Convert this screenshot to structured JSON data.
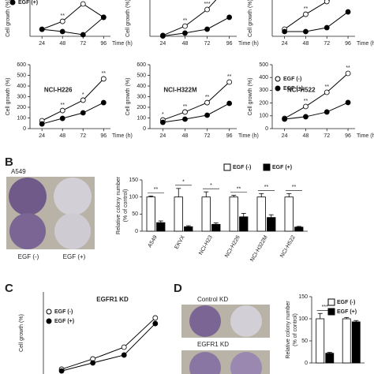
{
  "panels": [
    "B",
    "C",
    "D"
  ],
  "photos": [
    {
      "title": "A549",
      "labels": [
        "EGF (-)",
        "EGF (+)"
      ]
    },
    {
      "labels": [
        "Control KD",
        "EGFR1 KD"
      ]
    }
  ],
  "chart_data": [
    {
      "type": "line",
      "x_label": "Time (h)",
      "y_label": "Cell growth (%)",
      "x": [
        24,
        48,
        72,
        96
      ],
      "xlim": [
        10,
        104
      ],
      "xticks": [
        24,
        48,
        72,
        96
      ],
      "ylim": [
        0,
        300
      ],
      "series": [
        {
          "name": "EGF (-)",
          "color": "#ffffff",
          "values": [
            31,
            66,
            143,
            84
          ]
        },
        {
          "name": "EGF (+)",
          "color": "#000000",
          "values": [
            31,
            21,
            7,
            84
          ]
        }
      ],
      "significance": [
        null,
        "**",
        "***",
        null
      ]
    },
    {
      "type": "line",
      "x_label": "Time (h)",
      "y_label": "Cell growth (%)",
      "x": [
        24,
        48,
        72,
        96
      ],
      "xlim": [
        10,
        104
      ],
      "xticks": [
        24,
        48,
        72,
        96
      ],
      "ylim": [
        0,
        400
      ],
      "series": [
        {
          "name": "EGF (-)",
          "color": "#ffffff",
          "values": [
            5,
            60,
            158,
            300
          ]
        },
        {
          "name": "EGF (+)",
          "color": "#000000",
          "values": [
            2,
            19,
            42,
            112
          ]
        }
      ],
      "significance": [
        null,
        "**",
        "***",
        null
      ]
    },
    {
      "type": "line",
      "x_label": "Time (h)",
      "y_label": "Cell growth (%)",
      "x": [
        24,
        48,
        72,
        96
      ],
      "xlim": [
        10,
        104
      ],
      "xticks": [
        24,
        48,
        72,
        96
      ],
      "ylim": [
        0,
        400
      ],
      "series": [
        {
          "name": "EGF (-)",
          "color": "#ffffff",
          "values": [
            42,
            130,
            205,
            280
          ]
        },
        {
          "name": "EGF (+)",
          "color": "#000000",
          "values": [
            28,
            28,
            51,
            144
          ]
        }
      ],
      "significance": [
        null,
        "**",
        "***",
        "*"
      ]
    },
    {
      "type": "line",
      "title": "NCI-H226",
      "x_label": "Time (h)",
      "y_label": "Cell growth (%)",
      "x": [
        24,
        48,
        72,
        96
      ],
      "xlim": [
        10,
        104
      ],
      "xticks": [
        24,
        48,
        72,
        96
      ],
      "ylim": [
        0,
        600
      ],
      "yticks": [
        0,
        100,
        200,
        300,
        400,
        500,
        600
      ],
      "series": [
        {
          "name": "EGF (-)",
          "color": "#ffffff",
          "values": [
            74,
            170,
            267,
            467
          ]
        },
        {
          "name": "EGF (+)",
          "color": "#000000",
          "values": [
            44,
            96,
            148,
            244
          ]
        }
      ],
      "significance": [
        null,
        "**",
        "*",
        "**"
      ]
    },
    {
      "type": "line",
      "title": "NCI-H322M",
      "x_label": "Time (h)",
      "y_label": "Cell growth (%)",
      "x": [
        24,
        48,
        72,
        96
      ],
      "xlim": [
        10,
        104
      ],
      "xticks": [
        24,
        48,
        72,
        96
      ],
      "ylim": [
        0,
        600
      ],
      "yticks": [
        0,
        100,
        200,
        300,
        400,
        500,
        600
      ],
      "series": [
        {
          "name": "EGF (-)",
          "color": "#ffffff",
          "values": [
            81,
            156,
            244,
            437
          ]
        },
        {
          "name": "EGF (+)",
          "color": "#000000",
          "values": [
            59,
            89,
            126,
            237
          ]
        }
      ],
      "significance": [
        "*",
        "**",
        "**",
        "**"
      ]
    },
    {
      "type": "line",
      "title": "NCI-H522",
      "x_label": "Time (h)",
      "y_label": "Cell growth (%)",
      "x": [
        24,
        48,
        72,
        96
      ],
      "xlim": [
        10,
        104
      ],
      "xticks": [
        24,
        48,
        72,
        96
      ],
      "ylim": [
        0,
        500
      ],
      "yticks": [
        0,
        100,
        200,
        300,
        400,
        500
      ],
      "series": [
        {
          "name": "EGF (-)",
          "color": "#ffffff",
          "values": [
            80,
            173,
            284,
            432
          ]
        },
        {
          "name": "EGF (+)",
          "color": "#000000",
          "values": [
            74,
            93,
            130,
            204
          ]
        }
      ],
      "significance": [
        null,
        "**",
        "**",
        "**"
      ],
      "legend": "upper left"
    },
    {
      "type": "bar",
      "y_label": [
        "Relative colony number",
        "(% of control)"
      ],
      "categories": [
        "A549",
        "EKVX",
        "NCI-H23",
        "NCI-H226",
        "NCI-H322M",
        "NCI-H522"
      ],
      "ylim": [
        0,
        150
      ],
      "yticks": [
        0,
        50,
        100,
        150
      ],
      "series": [
        {
          "name": "EGF (-)",
          "color": "#ffffff",
          "values": [
            100,
            100,
            100,
            100,
            100,
            100
          ],
          "errors": [
            3,
            25,
            15,
            5,
            10,
            10
          ]
        },
        {
          "name": "EGF (+)",
          "color": "#000000",
          "values": [
            25,
            13,
            20,
            42,
            40,
            12
          ],
          "errors": [
            5,
            3,
            4,
            10,
            8,
            2
          ]
        }
      ],
      "significance": [
        "**",
        "*",
        "*",
        "**",
        "**",
        "**"
      ],
      "legend": "top"
    },
    {
      "type": "line",
      "title": "EGFR1 KD",
      "y_label": "Cell growth (%)",
      "x": [
        24,
        48,
        72,
        96
      ],
      "xlim": [
        10,
        104
      ],
      "ylim": [
        0,
        600
      ],
      "series": [
        {
          "name": "EGF (-)",
          "color": "#ffffff",
          "values": [
            148,
            208,
            277,
            448
          ]
        },
        {
          "name": "EGF (+)",
          "color": "#000000",
          "values": [
            138,
            185,
            231,
            415
          ]
        }
      ],
      "legend": "upper left"
    },
    {
      "type": "bar",
      "y_label": [
        "Relative colony number",
        "(% of control)"
      ],
      "categories": [
        null,
        null
      ],
      "ylim": [
        0,
        150
      ],
      "yticks": [
        0,
        50,
        100,
        150
      ],
      "series": [
        {
          "name": "EGF (-)",
          "color": "#ffffff",
          "values": [
            100,
            100
          ],
          "errors": [
            12,
            3
          ]
        },
        {
          "name": "EGF (+)",
          "color": "#000000",
          "values": [
            22,
            93
          ],
          "errors": [
            2,
            3
          ]
        }
      ],
      "significance": [
        "***",
        null
      ],
      "legend": "upper right"
    }
  ]
}
